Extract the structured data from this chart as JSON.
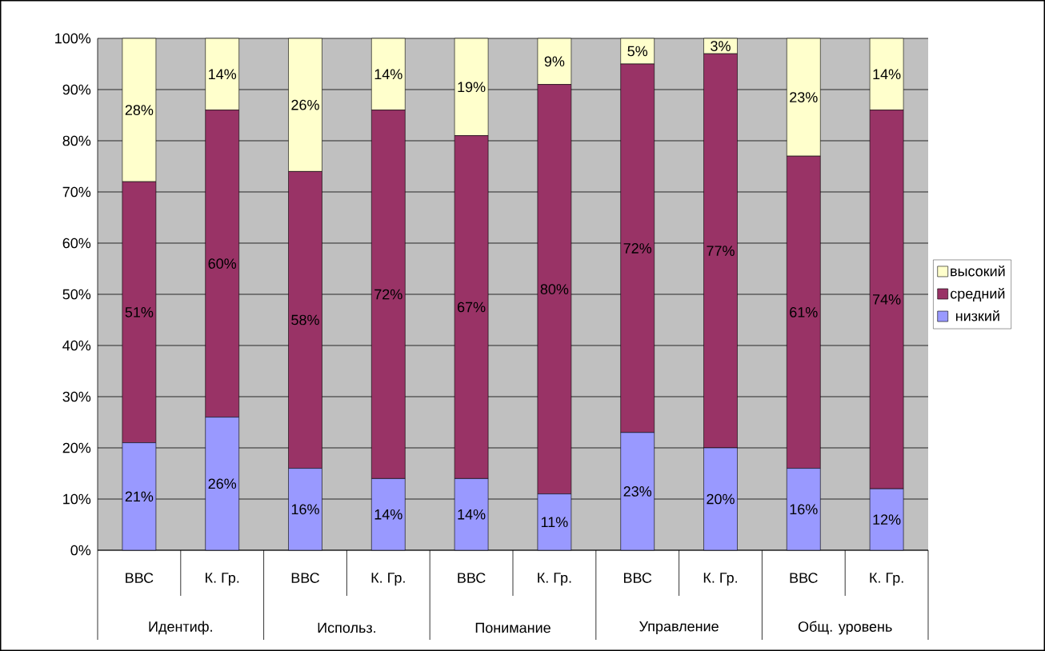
{
  "chart_data": {
    "type": "bar",
    "stacked": true,
    "categories": [
      "ВВС",
      "К. Гр.",
      "ВВС",
      "К. Гр.",
      "ВВС",
      "К. Гр.",
      "ВВС",
      "К. Гр.",
      "ВВС",
      "К. Гр."
    ],
    "series": [
      {
        "name": "низкий",
        "color": "#9999ff",
        "values": [
          21,
          26,
          16,
          14,
          14,
          11,
          23,
          20,
          16,
          12
        ],
        "value_labels": [
          "21%",
          "26%",
          "16%",
          "14%",
          "14%",
          "11%",
          "23%",
          "20%",
          "16%",
          "12%"
        ]
      },
      {
        "name": "средний",
        "color": "#993366",
        "values": [
          51,
          60,
          58,
          72,
          67,
          80,
          72,
          77,
          61,
          74
        ],
        "value_labels": [
          "51%",
          "60%",
          "58%",
          "72%",
          "67%",
          "80%",
          "72%",
          "77%",
          "61%",
          "74%"
        ]
      },
      {
        "name": "высокий",
        "color": "#ffffcc",
        "values": [
          28,
          14,
          26,
          14,
          19,
          9,
          5,
          3,
          23,
          14
        ],
        "value_labels": [
          "28%",
          "14%",
          "26%",
          "14%",
          "19%",
          "9%",
          "5%",
          "3%",
          "23%",
          "14%"
        ]
      }
    ],
    "annotations": [
      "Идентиф.",
      "Использ.",
      "Понимание",
      "Управление",
      "Общ. уровень"
    ],
    "ylim": [
      0,
      100
    ],
    "yticks": [
      {
        "value": 0,
        "label": "0%"
      },
      {
        "value": 10,
        "label": "10%"
      },
      {
        "value": 20,
        "label": "20%"
      },
      {
        "value": 30,
        "label": "30%"
      },
      {
        "value": 40,
        "label": "40%"
      },
      {
        "value": 50,
        "label": "50%"
      },
      {
        "value": 60,
        "label": "60%"
      },
      {
        "value": 70,
        "label": "70%"
      },
      {
        "value": 80,
        "label": "80%"
      },
      {
        "value": 90,
        "label": "90%"
      },
      {
        "value": 100,
        "label": "100%"
      }
    ],
    "grid": "y",
    "legend": "right"
  }
}
